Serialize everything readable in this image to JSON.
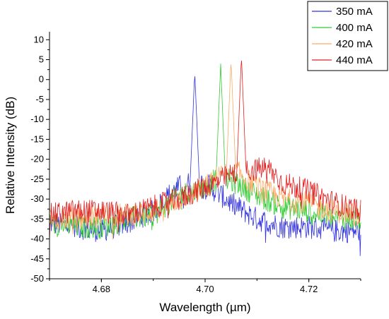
{
  "chart_data": {
    "type": "line",
    "xlabel": "Wavelength (µm)",
    "ylabel": "Relative Intensity (dB)",
    "xlim": [
      4.67,
      4.73
    ],
    "ylim": [
      -50,
      12
    ],
    "x_ticks": [
      "4.68",
      "4.70",
      "4.72"
    ],
    "x_tick_values": [
      4.68,
      4.7,
      4.72
    ],
    "y_ticks": [
      "10",
      "5",
      "0",
      "-5",
      "-10",
      "-15",
      "-20",
      "-25",
      "-30",
      "-35",
      "-40",
      "-45",
      "-50"
    ],
    "y_tick_values": [
      10,
      5,
      0,
      -5,
      -10,
      -15,
      -20,
      -25,
      -30,
      -35,
      -40,
      -45,
      -50
    ],
    "grid": false,
    "legend_position": "top-right",
    "series": [
      {
        "name": "350 mA",
        "color": "#3333dd",
        "peak_x": 4.698,
        "peak_y": 2,
        "points": [
          [
            4.67,
            -36
          ],
          [
            4.675,
            -37
          ],
          [
            4.68,
            -38
          ],
          [
            4.685,
            -36
          ],
          [
            4.69,
            -33
          ],
          [
            4.693,
            -29
          ],
          [
            4.695,
            -27
          ],
          [
            4.697,
            -26
          ],
          [
            4.698,
            2
          ],
          [
            4.699,
            -26
          ],
          [
            4.7,
            -26
          ],
          [
            4.702,
            -28
          ],
          [
            4.705,
            -31
          ],
          [
            4.71,
            -35
          ],
          [
            4.715,
            -37
          ],
          [
            4.72,
            -37
          ],
          [
            4.725,
            -38
          ],
          [
            4.73,
            -38
          ]
        ]
      },
      {
        "name": "400 mA",
        "color": "#33cc33",
        "peak_x": 4.703,
        "peak_y": 4,
        "points": [
          [
            4.67,
            -36
          ],
          [
            4.675,
            -37
          ],
          [
            4.68,
            -37
          ],
          [
            4.685,
            -35
          ],
          [
            4.69,
            -34
          ],
          [
            4.695,
            -29
          ],
          [
            4.7,
            -27
          ],
          [
            4.702,
            -25
          ],
          [
            4.703,
            4
          ],
          [
            4.704,
            -25
          ],
          [
            4.706,
            -26
          ],
          [
            4.71,
            -29
          ],
          [
            4.715,
            -32
          ],
          [
            4.72,
            -33
          ],
          [
            4.725,
            -35
          ],
          [
            4.73,
            -35
          ]
        ]
      },
      {
        "name": "420 mA",
        "color": "#ffaa66",
        "peak_x": 4.705,
        "peak_y": 5,
        "points": [
          [
            4.67,
            -35
          ],
          [
            4.675,
            -35
          ],
          [
            4.68,
            -34
          ],
          [
            4.685,
            -34
          ],
          [
            4.69,
            -33
          ],
          [
            4.695,
            -30
          ],
          [
            4.7,
            -27
          ],
          [
            4.703,
            -24
          ],
          [
            4.705,
            5
          ],
          [
            4.706,
            -23
          ],
          [
            4.71,
            -27
          ],
          [
            4.715,
            -30
          ],
          [
            4.72,
            -31
          ],
          [
            4.725,
            -33
          ],
          [
            4.73,
            -34
          ]
        ]
      },
      {
        "name": "440 mA",
        "color": "#e02020",
        "peak_x": 4.707,
        "peak_y": 6,
        "points": [
          [
            4.67,
            -34
          ],
          [
            4.675,
            -33
          ],
          [
            4.68,
            -33
          ],
          [
            4.685,
            -34
          ],
          [
            4.69,
            -32
          ],
          [
            4.695,
            -30
          ],
          [
            4.7,
            -27
          ],
          [
            4.705,
            -24
          ],
          [
            4.707,
            6
          ],
          [
            4.708,
            -23
          ],
          [
            4.712,
            -22
          ],
          [
            4.715,
            -26
          ],
          [
            4.72,
            -28
          ],
          [
            4.725,
            -31
          ],
          [
            4.73,
            -33
          ]
        ]
      }
    ]
  }
}
